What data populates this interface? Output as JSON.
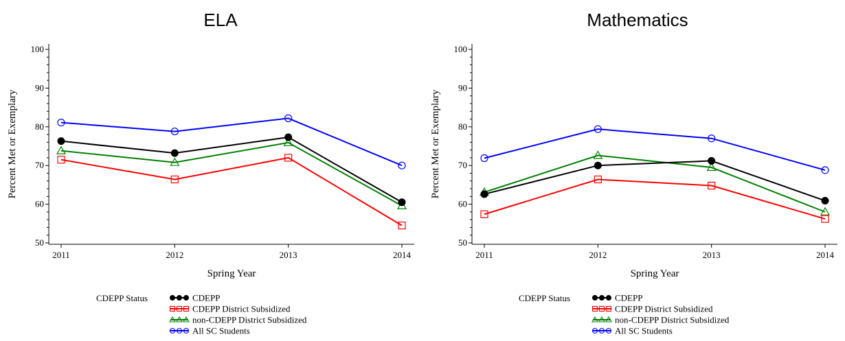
{
  "chart_data": [
    {
      "type": "line",
      "title": "ELA",
      "xlabel": "Spring Year",
      "ylabel": "Percent Met or Exemplary",
      "categories": [
        "2011",
        "2012",
        "2013",
        "2014"
      ],
      "yticks": [
        "50",
        "60",
        "70",
        "80",
        "90",
        "100"
      ],
      "ylim": [
        50,
        100
      ],
      "series": [
        {
          "name": "CDEPP",
          "values": [
            76.3,
            73.2,
            77.3,
            60.5
          ],
          "color": "#000000",
          "marker": "filled-circle"
        },
        {
          "name": "CDEPP District Subsidized",
          "values": [
            71.5,
            66.4,
            72.0,
            54.5
          ],
          "color": "#ff0000",
          "marker": "square"
        },
        {
          "name": "non-CDEPP District Subsidized",
          "values": [
            73.8,
            70.8,
            75.9,
            59.6
          ],
          "color": "#008000",
          "marker": "triangle"
        },
        {
          "name": "All SC Students",
          "values": [
            81.1,
            78.8,
            82.2,
            70.0
          ],
          "color": "#0000ff",
          "marker": "circle"
        }
      ]
    },
    {
      "type": "line",
      "title": "Mathematics",
      "xlabel": "Spring Year",
      "ylabel": "Percent Met or Exemplary",
      "categories": [
        "2011",
        "2012",
        "2013",
        "2014"
      ],
      "yticks": [
        "50",
        "60",
        "70",
        "80",
        "90",
        "100"
      ],
      "ylim": [
        50,
        100
      ],
      "series": [
        {
          "name": "CDEPP",
          "values": [
            62.6,
            70.0,
            71.2,
            60.9
          ],
          "color": "#000000",
          "marker": "filled-circle"
        },
        {
          "name": "CDEPP District Subsidized",
          "values": [
            57.4,
            66.4,
            64.8,
            56.2
          ],
          "color": "#ff0000",
          "marker": "square"
        },
        {
          "name": "non-CDEPP District Subsidized",
          "values": [
            63.1,
            72.6,
            69.5,
            58.0
          ],
          "color": "#008000",
          "marker": "triangle"
        },
        {
          "name": "All SC Students",
          "values": [
            71.9,
            79.4,
            77.0,
            68.8
          ],
          "color": "#0000ff",
          "marker": "circle"
        }
      ]
    }
  ],
  "legend": {
    "title": "CDEPP Status",
    "entries": [
      "CDEPP",
      "CDEPP District Subsidized",
      "non-CDEPP District Subsidized",
      "All SC Students"
    ]
  }
}
